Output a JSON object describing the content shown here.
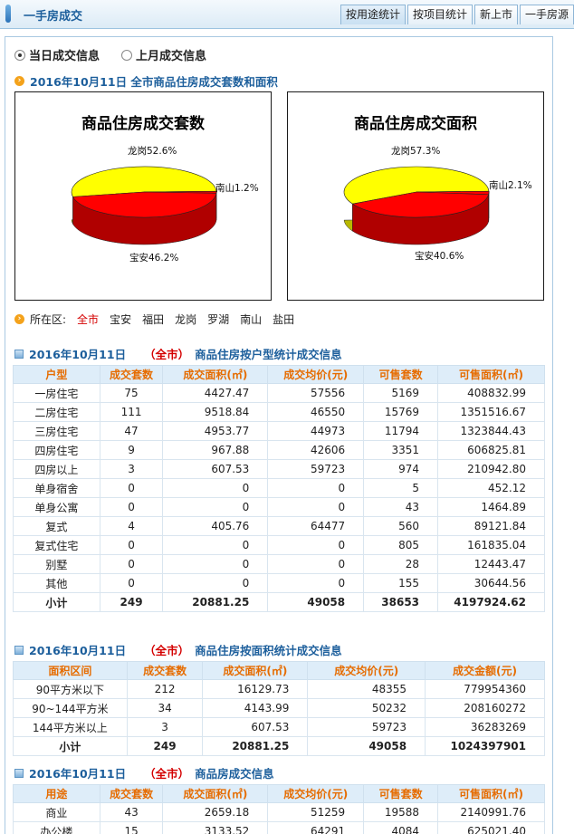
{
  "header": {
    "title": "一手房成交",
    "tabs": [
      "按用途统计",
      "按项目统计",
      "新上市",
      "一手房源"
    ]
  },
  "radios": [
    "当日成交信息",
    "上月成交信息"
  ],
  "section1_title": "2016年10月11日 全市商品住房成交套数和面积",
  "chart_data": [
    {
      "type": "pie",
      "title": "商品住房成交套数",
      "slices": [
        {
          "label": "龙岗",
          "value": 52.6
        },
        {
          "label": "南山",
          "value": 1.2
        },
        {
          "label": "宝安",
          "value": 46.2
        }
      ],
      "label_text": [
        "龙岗52.6%",
        "南山1.2%",
        "宝安46.2%"
      ],
      "colors": [
        "#ffff00",
        "#ff0000",
        "#ff0000"
      ]
    },
    {
      "type": "pie",
      "title": "商品住房成交面积",
      "slices": [
        {
          "label": "龙岗",
          "value": 57.3
        },
        {
          "label": "南山",
          "value": 2.1
        },
        {
          "label": "宝安",
          "value": 40.6
        }
      ],
      "label_text": [
        "龙岗57.3%",
        "南山2.1%",
        "宝安40.6%"
      ],
      "colors": [
        "#ffff00",
        "#ff0000",
        "#ff0000"
      ]
    }
  ],
  "area_filter": {
    "label": "所在区:",
    "items": [
      "全市",
      "宝安",
      "福田",
      "龙岗",
      "罗湖",
      "南山",
      "盐田"
    ],
    "current": "全市"
  },
  "table1": {
    "date": "2016年10月11日",
    "scope": "（全市）",
    "suffix": "商品住房按户型统计成交信息",
    "headers": [
      "户型",
      "成交套数",
      "成交面积(㎡)",
      "成交均价(元)",
      "可售套数",
      "可售面积(㎡)"
    ],
    "rows": [
      [
        "一房住宅",
        "75",
        "4427.47",
        "57556",
        "5169",
        "408832.99"
      ],
      [
        "二房住宅",
        "111",
        "9518.84",
        "46550",
        "15769",
        "1351516.67"
      ],
      [
        "三房住宅",
        "47",
        "4953.77",
        "44973",
        "11794",
        "1323844.43"
      ],
      [
        "四房住宅",
        "9",
        "967.88",
        "42606",
        "3351",
        "606825.81"
      ],
      [
        "四房以上",
        "3",
        "607.53",
        "59723",
        "974",
        "210942.80"
      ],
      [
        "单身宿舍",
        "0",
        "0",
        "0",
        "5",
        "452.12"
      ],
      [
        "单身公寓",
        "0",
        "0",
        "0",
        "43",
        "1464.89"
      ],
      [
        "复式",
        "4",
        "405.76",
        "64477",
        "560",
        "89121.84"
      ],
      [
        "复式住宅",
        "0",
        "0",
        "0",
        "805",
        "161835.04"
      ],
      [
        "别墅",
        "0",
        "0",
        "0",
        "28",
        "12443.47"
      ],
      [
        "其他",
        "0",
        "0",
        "0",
        "155",
        "30644.56"
      ],
      [
        "小计",
        "249",
        "20881.25",
        "49058",
        "38653",
        "4197924.62"
      ]
    ]
  },
  "table2": {
    "date": "2016年10月11日",
    "scope": "（全市）",
    "suffix": "商品住房按面积统计成交信息",
    "headers": [
      "面积区间",
      "成交套数",
      "成交面积(㎡)",
      "成交均价(元)",
      "成交金额(元)"
    ],
    "rows": [
      [
        "90平方米以下",
        "212",
        "16129.73",
        "48355",
        "779954360"
      ],
      [
        "90~144平方米",
        "34",
        "4143.99",
        "50232",
        "208160272"
      ],
      [
        "144平方米以上",
        "3",
        "607.53",
        "59723",
        "36283269"
      ],
      [
        "小计",
        "249",
        "20881.25",
        "49058",
        "1024397901"
      ]
    ]
  },
  "table3": {
    "date": "2016年10月11日",
    "scope": "（全市）",
    "suffix": "商品房成交信息",
    "headers": [
      "用途",
      "成交套数",
      "成交面积(㎡)",
      "成交均价(元)",
      "可售套数",
      "可售面积(㎡)"
    ],
    "rows": [
      [
        "商业",
        "43",
        "2659.18",
        "51259",
        "19588",
        "2140991.76"
      ],
      [
        "办公楼",
        "15",
        "3133.52",
        "64291",
        "4084",
        "625021.40"
      ]
    ]
  }
}
